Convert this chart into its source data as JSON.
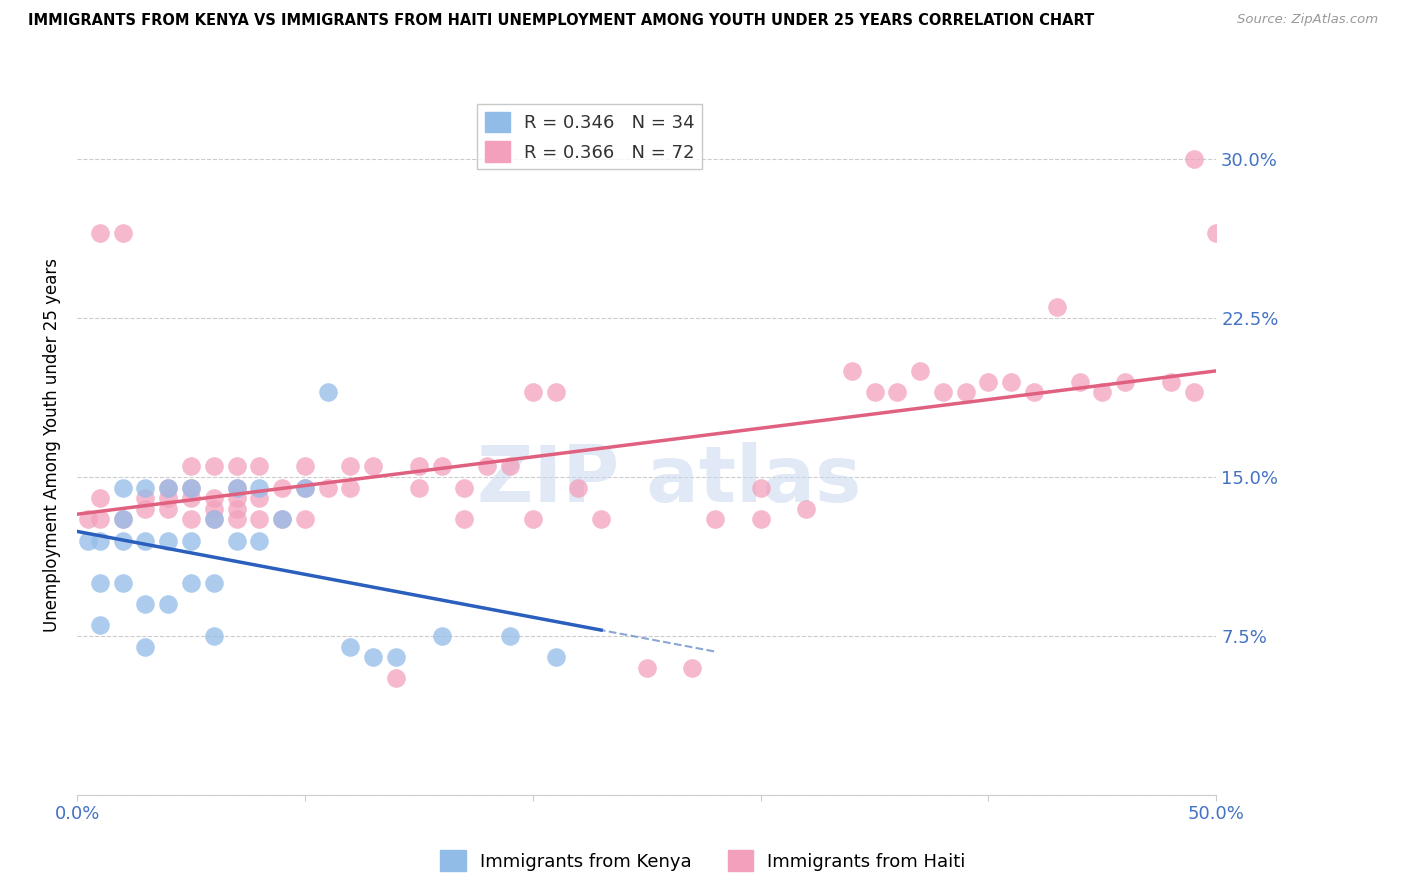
{
  "title": "IMMIGRANTS FROM KENYA VS IMMIGRANTS FROM HAITI UNEMPLOYMENT AMONG YOUTH UNDER 25 YEARS CORRELATION CHART",
  "source": "Source: ZipAtlas.com",
  "ylabel": "Unemployment Among Youth under 25 years",
  "xlim": [
    0.0,
    0.5
  ],
  "ylim": [
    0.0,
    0.33
  ],
  "yticks": [
    0.0,
    0.075,
    0.15,
    0.225,
    0.3
  ],
  "ytick_labels": [
    "",
    "7.5%",
    "15.0%",
    "22.5%",
    "30.0%"
  ],
  "kenya_color": "#92bce8",
  "haiti_color": "#f2a0bb",
  "kenya_line_color": "#2b5fbd",
  "haiti_line_color": "#e06080",
  "dash_line_color": "#7090c8",
  "kenya_R": 0.346,
  "kenya_N": 34,
  "haiti_R": 0.366,
  "haiti_N": 72,
  "legend_label_kenya": "Immigrants from Kenya",
  "legend_label_haiti": "Immigrants from Haiti",
  "watermark_text": "ZIP atlas",
  "kenya_x": [
    0.005,
    0.01,
    0.01,
    0.01,
    0.02,
    0.02,
    0.02,
    0.02,
    0.03,
    0.03,
    0.03,
    0.03,
    0.04,
    0.04,
    0.04,
    0.05,
    0.05,
    0.05,
    0.06,
    0.06,
    0.06,
    0.07,
    0.07,
    0.08,
    0.08,
    0.09,
    0.1,
    0.11,
    0.12,
    0.13,
    0.14,
    0.16,
    0.19,
    0.21
  ],
  "kenya_y": [
    0.12,
    0.08,
    0.1,
    0.12,
    0.1,
    0.12,
    0.13,
    0.145,
    0.07,
    0.09,
    0.12,
    0.145,
    0.09,
    0.12,
    0.145,
    0.1,
    0.12,
    0.145,
    0.075,
    0.1,
    0.13,
    0.12,
    0.145,
    0.12,
    0.145,
    0.13,
    0.145,
    0.19,
    0.07,
    0.065,
    0.065,
    0.075,
    0.075,
    0.065
  ],
  "haiti_x": [
    0.005,
    0.01,
    0.01,
    0.01,
    0.02,
    0.02,
    0.03,
    0.03,
    0.04,
    0.04,
    0.04,
    0.05,
    0.05,
    0.05,
    0.05,
    0.06,
    0.06,
    0.06,
    0.06,
    0.07,
    0.07,
    0.07,
    0.07,
    0.07,
    0.08,
    0.08,
    0.08,
    0.09,
    0.09,
    0.1,
    0.1,
    0.1,
    0.11,
    0.12,
    0.12,
    0.13,
    0.14,
    0.15,
    0.15,
    0.16,
    0.17,
    0.17,
    0.18,
    0.19,
    0.2,
    0.2,
    0.21,
    0.22,
    0.23,
    0.25,
    0.27,
    0.28,
    0.3,
    0.3,
    0.32,
    0.34,
    0.35,
    0.36,
    0.37,
    0.38,
    0.39,
    0.4,
    0.41,
    0.42,
    0.43,
    0.44,
    0.45,
    0.46,
    0.48,
    0.49,
    0.49,
    0.5
  ],
  "haiti_y": [
    0.13,
    0.13,
    0.14,
    0.265,
    0.13,
    0.265,
    0.135,
    0.14,
    0.135,
    0.14,
    0.145,
    0.13,
    0.14,
    0.145,
    0.155,
    0.13,
    0.135,
    0.14,
    0.155,
    0.13,
    0.135,
    0.14,
    0.145,
    0.155,
    0.13,
    0.14,
    0.155,
    0.13,
    0.145,
    0.13,
    0.145,
    0.155,
    0.145,
    0.145,
    0.155,
    0.155,
    0.055,
    0.145,
    0.155,
    0.155,
    0.13,
    0.145,
    0.155,
    0.155,
    0.13,
    0.19,
    0.19,
    0.145,
    0.13,
    0.06,
    0.06,
    0.13,
    0.13,
    0.145,
    0.135,
    0.2,
    0.19,
    0.19,
    0.2,
    0.19,
    0.19,
    0.195,
    0.195,
    0.19,
    0.23,
    0.195,
    0.19,
    0.195,
    0.195,
    0.19,
    0.3,
    0.265
  ]
}
